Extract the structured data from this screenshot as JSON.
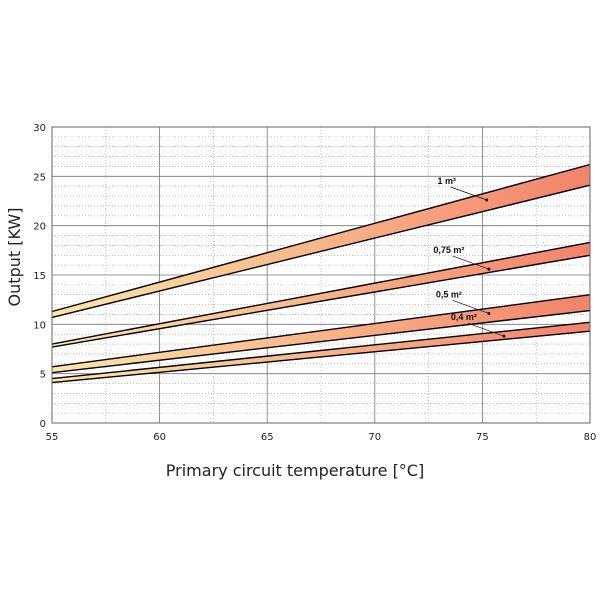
{
  "chart_data": {
    "type": "area",
    "title": "",
    "xlabel": "Primary circuit temperature [°C]",
    "ylabel": "Output [KW]",
    "xlim": [
      55,
      80
    ],
    "ylim": [
      0,
      30
    ],
    "x_ticks": [
      "55",
      "60",
      "65",
      "70",
      "75",
      "80"
    ],
    "y_ticks": [
      "0",
      "5",
      "10",
      "15",
      "20",
      "25",
      "30"
    ],
    "grid": true,
    "colors": {
      "band_low": "#fde6a8",
      "band_high": "#f2836a",
      "line": "#000000",
      "grid": "#999999"
    },
    "series": [
      {
        "name": "1 m²",
        "x": [
          55,
          80
        ],
        "lower": [
          10.7,
          24.1
        ],
        "upper": [
          11.3,
          26.2
        ],
        "label_at": [
          75.2,
          22.6
        ]
      },
      {
        "name": "0,75 m²",
        "x": [
          55,
          80
        ],
        "lower": [
          7.7,
          17.0
        ],
        "upper": [
          8.0,
          18.3
        ],
        "label_at": [
          75.3,
          15.6
        ]
      },
      {
        "name": "0,5 m²",
        "x": [
          55,
          80
        ],
        "lower": [
          5.1,
          11.4
        ],
        "upper": [
          5.7,
          13.0
        ],
        "label_at": [
          75.3,
          11.1
        ]
      },
      {
        "name": "0,4 m²",
        "x": [
          55,
          80
        ],
        "lower": [
          4.1,
          9.3
        ],
        "upper": [
          4.5,
          10.2
        ],
        "label_at": [
          76.0,
          8.8
        ]
      }
    ]
  }
}
